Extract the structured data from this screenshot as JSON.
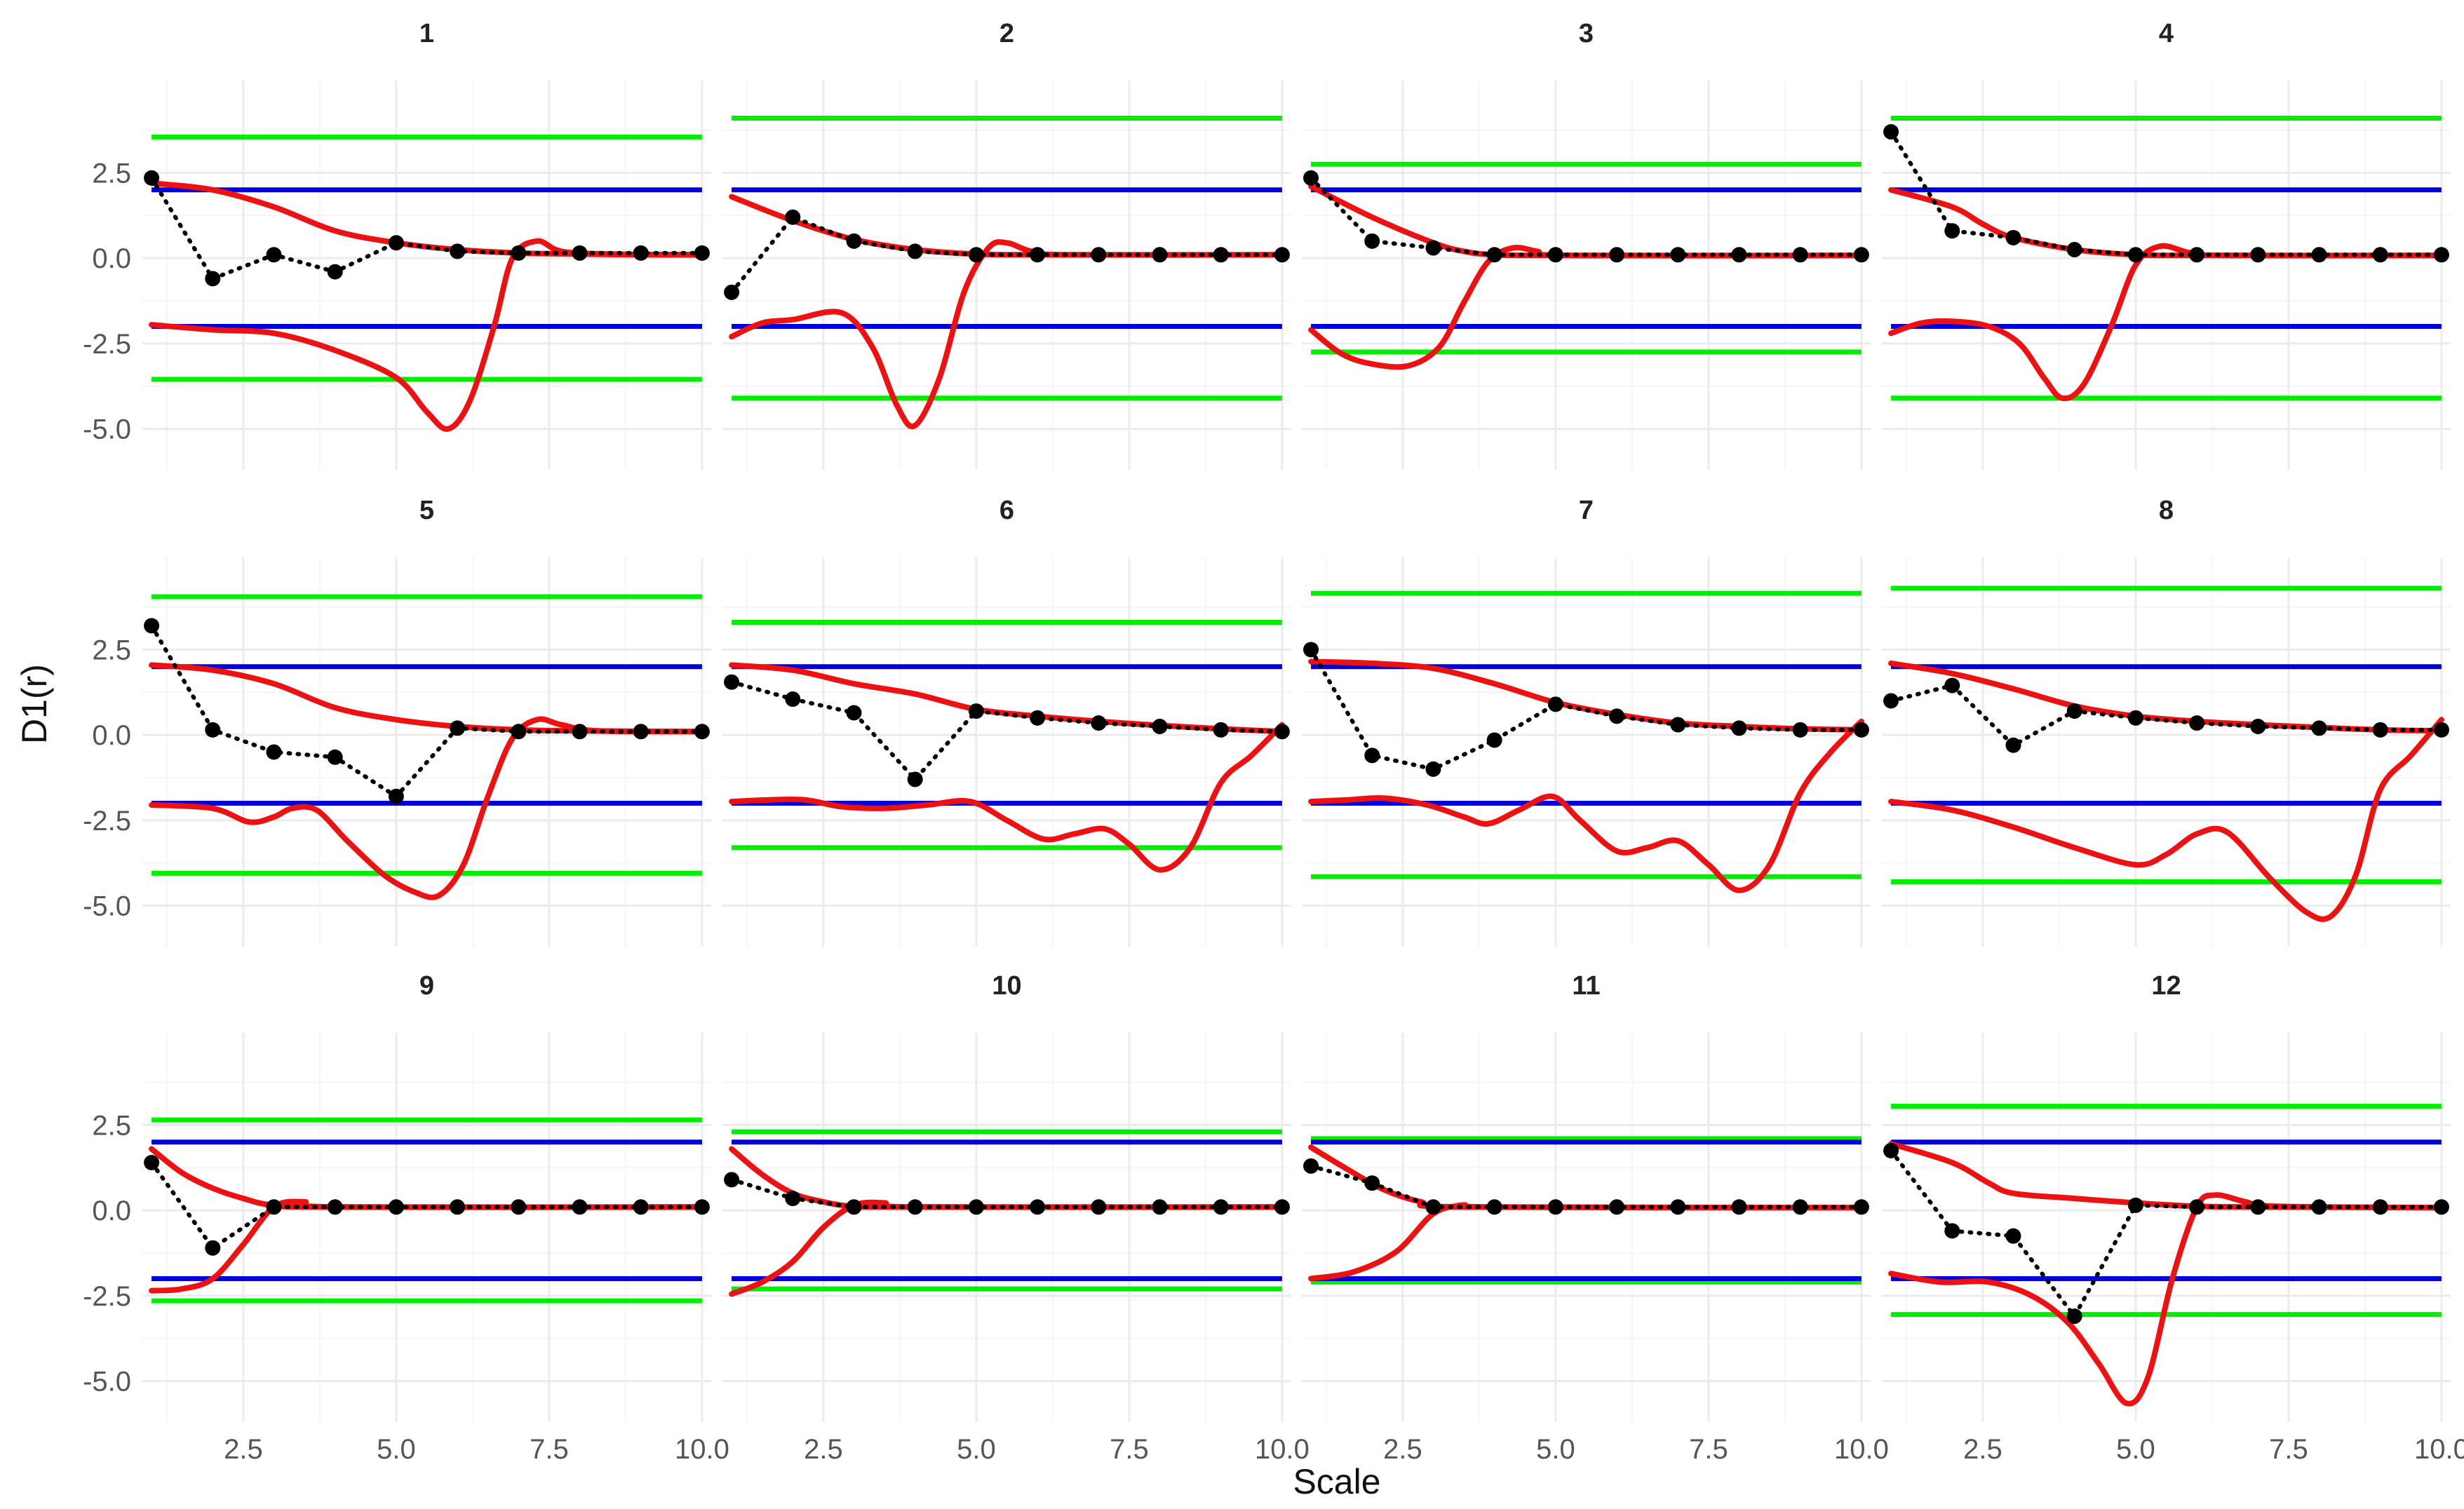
{
  "colors": {
    "grid_major": "#ebebeb",
    "grid_minor": "#f5f5f5",
    "green": "#00ee00",
    "blue": "#0000dd",
    "red": "#ee1111",
    "points": "#000000",
    "text": "#222222",
    "tick_text": "#555555"
  },
  "chart_data": {
    "type": "line",
    "title": "",
    "xlabel": "Scale",
    "ylabel": "D1(r)",
    "xlim": [
      0.85,
      10.15
    ],
    "ylim": [
      -6.2,
      5.2
    ],
    "x_ticks": [
      2.5,
      5.0,
      7.5,
      10.0
    ],
    "x_tick_labels": [
      "2.5",
      "5.0",
      "7.5",
      "10.0"
    ],
    "y_ticks": [
      2.5,
      0.0,
      -2.5,
      -5.0
    ],
    "y_tick_labels": [
      "2.5",
      "0.0",
      "-2.5",
      "-5.0"
    ],
    "layout": "facet grid, 3 rows x 4 columns",
    "legend": "none",
    "series_description": {
      "points": "black points joined by a dotted line (observed D1 at scales 1-10)",
      "red": "upper and lower red curves (envelope)",
      "blue": "horizontal lines at +2 and -2",
      "green": "horizontal lines at symmetric bound"
    },
    "panels": [
      {
        "label": "1",
        "green": 3.55,
        "points": [
          2.35,
          -0.6,
          0.1,
          -0.4,
          0.45,
          0.2,
          0.15,
          0.15,
          0.15,
          0.15
        ],
        "red_upper": [
          [
            1,
            2.2
          ],
          [
            2,
            2.0
          ],
          [
            3,
            1.5
          ],
          [
            4,
            0.8
          ],
          [
            5,
            0.45
          ],
          [
            6,
            0.25
          ],
          [
            7,
            0.15
          ],
          [
            8,
            0.12
          ],
          [
            9,
            0.1
          ],
          [
            10,
            0.1
          ]
        ],
        "red_lower": [
          [
            1,
            -1.95
          ],
          [
            2,
            -2.1
          ],
          [
            3,
            -2.2
          ],
          [
            4,
            -2.7
          ],
          [
            5,
            -3.5
          ],
          [
            5.5,
            -4.5
          ],
          [
            5.85,
            -5.0
          ],
          [
            6.2,
            -4.2
          ],
          [
            6.6,
            -2.0
          ],
          [
            6.9,
            0.0
          ],
          [
            7.3,
            0.5
          ],
          [
            7.7,
            0.2
          ],
          [
            8.5,
            0.12
          ],
          [
            10,
            0.1
          ]
        ]
      },
      {
        "label": "2",
        "green": 4.1,
        "points": [
          -1.0,
          1.2,
          0.5,
          0.2,
          0.1,
          0.1,
          0.1,
          0.1,
          0.1,
          0.1
        ],
        "red_upper": [
          [
            1,
            1.8
          ],
          [
            2,
            1.1
          ],
          [
            3,
            0.55
          ],
          [
            4,
            0.25
          ],
          [
            5,
            0.12
          ],
          [
            6,
            0.1
          ],
          [
            10,
            0.1
          ]
        ],
        "red_lower": [
          [
            1,
            -2.3
          ],
          [
            1.5,
            -1.9
          ],
          [
            2,
            -1.8
          ],
          [
            2.8,
            -1.6
          ],
          [
            3.3,
            -2.6
          ],
          [
            3.7,
            -4.3
          ],
          [
            4,
            -4.9
          ],
          [
            4.4,
            -3.5
          ],
          [
            4.8,
            -1.0
          ],
          [
            5.2,
            0.3
          ],
          [
            5.5,
            0.45
          ],
          [
            5.9,
            0.2
          ],
          [
            6.5,
            0.1
          ],
          [
            10,
            0.1
          ]
        ]
      },
      {
        "label": "3",
        "green": 2.75,
        "points": [
          2.35,
          0.5,
          0.3,
          0.1,
          0.1,
          0.1,
          0.1,
          0.1,
          0.1,
          0.1
        ],
        "red_upper": [
          [
            1,
            2.1
          ],
          [
            2,
            1.2
          ],
          [
            3,
            0.45
          ],
          [
            3.5,
            0.2
          ],
          [
            4,
            0.1
          ],
          [
            5,
            0.08
          ],
          [
            10,
            0.08
          ]
        ],
        "red_lower": [
          [
            1,
            -2.1
          ],
          [
            1.5,
            -2.8
          ],
          [
            2,
            -3.1
          ],
          [
            2.6,
            -3.15
          ],
          [
            3.1,
            -2.6
          ],
          [
            3.5,
            -1.3
          ],
          [
            3.9,
            -0.1
          ],
          [
            4.3,
            0.3
          ],
          [
            4.7,
            0.2
          ],
          [
            5.2,
            0.08
          ],
          [
            10,
            0.08
          ]
        ]
      },
      {
        "label": "4",
        "green": 4.1,
        "points": [
          3.7,
          0.8,
          0.6,
          0.25,
          0.1,
          0.1,
          0.1,
          0.1,
          0.1,
          0.1
        ],
        "red_upper": [
          [
            1,
            2.0
          ],
          [
            2,
            1.5
          ],
          [
            2.5,
            1.0
          ],
          [
            3,
            0.6
          ],
          [
            4,
            0.25
          ],
          [
            5,
            0.1
          ],
          [
            6,
            0.08
          ],
          [
            10,
            0.08
          ]
        ],
        "red_lower": [
          [
            1,
            -2.2
          ],
          [
            1.5,
            -1.9
          ],
          [
            2,
            -1.85
          ],
          [
            2.6,
            -2.0
          ],
          [
            3.1,
            -2.5
          ],
          [
            3.5,
            -3.5
          ],
          [
            3.8,
            -4.1
          ],
          [
            4.15,
            -3.7
          ],
          [
            4.6,
            -2.0
          ],
          [
            5,
            -0.2
          ],
          [
            5.4,
            0.35
          ],
          [
            5.9,
            0.15
          ],
          [
            6.5,
            0.08
          ],
          [
            10,
            0.08
          ]
        ]
      },
      {
        "label": "5",
        "green": 4.05,
        "points": [
          3.2,
          0.15,
          -0.5,
          -0.65,
          -1.8,
          0.2,
          0.1,
          0.1,
          0.1,
          0.1
        ],
        "red_upper": [
          [
            1,
            2.05
          ],
          [
            2,
            1.9
          ],
          [
            3,
            1.5
          ],
          [
            4,
            0.8
          ],
          [
            5,
            0.45
          ],
          [
            6,
            0.25
          ],
          [
            7,
            0.15
          ],
          [
            8,
            0.12
          ],
          [
            10,
            0.1
          ]
        ],
        "red_lower": [
          [
            1,
            -2.05
          ],
          [
            2,
            -2.15
          ],
          [
            2.6,
            -2.55
          ],
          [
            3.0,
            -2.4
          ],
          [
            3.3,
            -2.15
          ],
          [
            3.7,
            -2.2
          ],
          [
            4.2,
            -3.1
          ],
          [
            4.8,
            -4.1
          ],
          [
            5.3,
            -4.6
          ],
          [
            5.7,
            -4.7
          ],
          [
            6.1,
            -3.8
          ],
          [
            6.5,
            -1.8
          ],
          [
            6.9,
            -0.1
          ],
          [
            7.3,
            0.45
          ],
          [
            7.7,
            0.3
          ],
          [
            8.3,
            0.12
          ],
          [
            10,
            0.1
          ]
        ]
      },
      {
        "label": "6",
        "green": 3.3,
        "points": [
          1.55,
          1.05,
          0.65,
          -1.3,
          0.7,
          0.5,
          0.35,
          0.25,
          0.15,
          0.1
        ],
        "red_upper": [
          [
            1,
            2.05
          ],
          [
            2,
            1.9
          ],
          [
            3,
            1.5
          ],
          [
            4,
            1.2
          ],
          [
            5,
            0.75
          ],
          [
            6,
            0.55
          ],
          [
            7,
            0.4
          ],
          [
            8,
            0.28
          ],
          [
            9,
            0.18
          ],
          [
            10,
            0.1
          ]
        ],
        "red_lower": [
          [
            1,
            -1.95
          ],
          [
            1.6,
            -1.9
          ],
          [
            2.2,
            -1.9
          ],
          [
            2.8,
            -2.1
          ],
          [
            3.5,
            -2.15
          ],
          [
            4.2,
            -2.05
          ],
          [
            4.9,
            -1.95
          ],
          [
            5.5,
            -2.5
          ],
          [
            6.1,
            -3.05
          ],
          [
            6.6,
            -2.9
          ],
          [
            7.1,
            -2.75
          ],
          [
            7.5,
            -3.2
          ],
          [
            8.0,
            -3.95
          ],
          [
            8.5,
            -3.3
          ],
          [
            9.0,
            -1.4
          ],
          [
            9.5,
            -0.6
          ],
          [
            10,
            0.3
          ]
        ]
      },
      {
        "label": "7",
        "green": 4.15,
        "points": [
          2.5,
          -0.6,
          -1.0,
          -0.15,
          0.9,
          0.55,
          0.3,
          0.2,
          0.15,
          0.15
        ],
        "red_upper": [
          [
            1,
            2.15
          ],
          [
            2,
            2.1
          ],
          [
            3,
            1.95
          ],
          [
            4,
            1.5
          ],
          [
            5,
            0.95
          ],
          [
            6,
            0.6
          ],
          [
            7,
            0.35
          ],
          [
            8,
            0.25
          ],
          [
            9,
            0.18
          ],
          [
            10,
            0.15
          ]
        ],
        "red_lower": [
          [
            1,
            -1.95
          ],
          [
            1.6,
            -1.9
          ],
          [
            2.2,
            -1.85
          ],
          [
            2.9,
            -2.05
          ],
          [
            3.5,
            -2.4
          ],
          [
            3.9,
            -2.6
          ],
          [
            4.4,
            -2.2
          ],
          [
            4.95,
            -1.8
          ],
          [
            5.4,
            -2.5
          ],
          [
            6.0,
            -3.4
          ],
          [
            6.5,
            -3.3
          ],
          [
            7.0,
            -3.1
          ],
          [
            7.5,
            -3.8
          ],
          [
            8.0,
            -4.55
          ],
          [
            8.5,
            -3.8
          ],
          [
            9.0,
            -1.7
          ],
          [
            9.5,
            -0.5
          ],
          [
            10,
            0.4
          ]
        ]
      },
      {
        "label": "8",
        "green": 4.3,
        "points": [
          1.0,
          1.45,
          -0.3,
          0.7,
          0.5,
          0.35,
          0.25,
          0.2,
          0.15,
          0.15
        ],
        "red_upper": [
          [
            1,
            2.1
          ],
          [
            2,
            1.8
          ],
          [
            3,
            1.35
          ],
          [
            4,
            0.85
          ],
          [
            5,
            0.55
          ],
          [
            6,
            0.4
          ],
          [
            7,
            0.3
          ],
          [
            8,
            0.22
          ],
          [
            9,
            0.15
          ],
          [
            10,
            0.12
          ]
        ],
        "red_lower": [
          [
            1,
            -1.95
          ],
          [
            2,
            -2.2
          ],
          [
            3,
            -2.7
          ],
          [
            4,
            -3.3
          ],
          [
            5,
            -3.8
          ],
          [
            5.5,
            -3.5
          ],
          [
            6.0,
            -2.9
          ],
          [
            6.5,
            -2.85
          ],
          [
            7.2,
            -4.2
          ],
          [
            7.8,
            -5.2
          ],
          [
            8.2,
            -5.3
          ],
          [
            8.6,
            -4.1
          ],
          [
            9,
            -1.6
          ],
          [
            9.5,
            -0.6
          ],
          [
            10,
            0.45
          ]
        ]
      },
      {
        "label": "9",
        "green": 2.65,
        "points": [
          1.4,
          -1.1,
          0.1,
          0.1,
          0.1,
          0.1,
          0.1,
          0.1,
          0.1,
          0.1
        ],
        "red_upper": [
          [
            1,
            1.8
          ],
          [
            1.5,
            1.1
          ],
          [
            2,
            0.65
          ],
          [
            2.5,
            0.35
          ],
          [
            3,
            0.15
          ],
          [
            4,
            0.1
          ],
          [
            10,
            0.1
          ]
        ],
        "red_lower": [
          [
            1,
            -2.35
          ],
          [
            1.5,
            -2.3
          ],
          [
            2,
            -2.0
          ],
          [
            2.5,
            -1.0
          ],
          [
            3,
            0.1
          ],
          [
            3.5,
            0.25
          ],
          [
            4,
            0.1
          ],
          [
            10,
            0.1
          ]
        ]
      },
      {
        "label": "10",
        "green": 2.3,
        "points": [
          0.9,
          0.35,
          0.1,
          0.1,
          0.1,
          0.1,
          0.1,
          0.1,
          0.1,
          0.1
        ],
        "red_upper": [
          [
            1,
            1.8
          ],
          [
            1.5,
            1.05
          ],
          [
            2,
            0.5
          ],
          [
            2.5,
            0.25
          ],
          [
            3,
            0.12
          ],
          [
            4,
            0.1
          ],
          [
            10,
            0.1
          ]
        ],
        "red_lower": [
          [
            1,
            -2.45
          ],
          [
            1.5,
            -2.1
          ],
          [
            2,
            -1.5
          ],
          [
            2.5,
            -0.5
          ],
          [
            3,
            0.15
          ],
          [
            3.5,
            0.22
          ],
          [
            4,
            0.1
          ],
          [
            10,
            0.1
          ]
        ]
      },
      {
        "label": "11",
        "green": 2.1,
        "points": [
          1.3,
          0.8,
          0.1,
          0.1,
          0.1,
          0.1,
          0.1,
          0.1,
          0.1,
          0.1
        ],
        "red_upper": [
          [
            1,
            1.85
          ],
          [
            1.6,
            1.2
          ],
          [
            2.2,
            0.6
          ],
          [
            2.8,
            0.25
          ],
          [
            3.5,
            0.1
          ],
          [
            10,
            0.08
          ]
        ],
        "red_lower": [
          [
            1,
            -2.0
          ],
          [
            1.7,
            -1.8
          ],
          [
            2.4,
            -1.2
          ],
          [
            3,
            -0.1
          ],
          [
            3.5,
            0.15
          ],
          [
            4,
            0.1
          ],
          [
            10,
            0.08
          ]
        ]
      },
      {
        "label": "12",
        "green": 3.05,
        "points": [
          1.75,
          -0.6,
          -0.75,
          -3.1,
          0.15,
          0.1,
          0.1,
          0.1,
          0.1,
          0.1
        ],
        "red_upper": [
          [
            1,
            1.95
          ],
          [
            2,
            1.4
          ],
          [
            2.6,
            0.8
          ],
          [
            3,
            0.5
          ],
          [
            4,
            0.35
          ],
          [
            5,
            0.22
          ],
          [
            6,
            0.12
          ],
          [
            7,
            0.1
          ],
          [
            10,
            0.08
          ]
        ],
        "red_lower": [
          [
            1,
            -1.85
          ],
          [
            1.8,
            -2.1
          ],
          [
            2.6,
            -2.1
          ],
          [
            3.3,
            -2.5
          ],
          [
            3.9,
            -3.3
          ],
          [
            4.4,
            -4.5
          ],
          [
            4.85,
            -5.65
          ],
          [
            5.2,
            -4.9
          ],
          [
            5.6,
            -2.0
          ],
          [
            6.0,
            0.1
          ],
          [
            6.3,
            0.45
          ],
          [
            6.8,
            0.25
          ],
          [
            7.3,
            0.12
          ],
          [
            10,
            0.08
          ]
        ]
      }
    ]
  }
}
